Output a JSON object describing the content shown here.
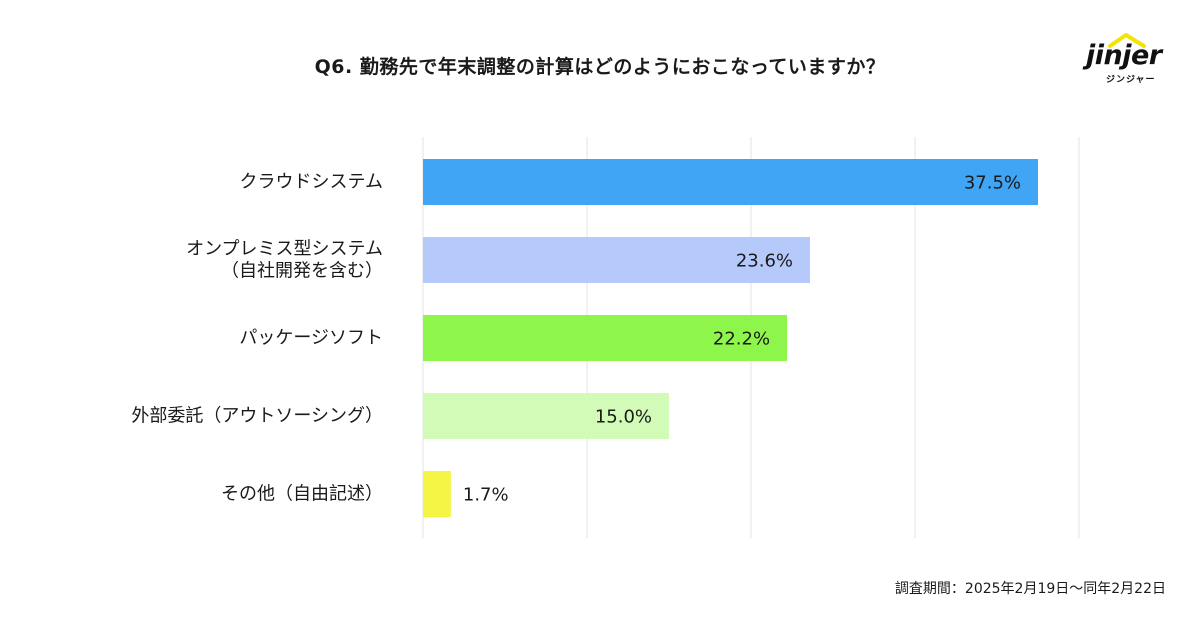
{
  "title": "Q6. 勤務先で年末調整の計算はどのようにおこなっていますか？",
  "logo": {
    "word": "jinjer",
    "sub": "ジンジャー",
    "icon": "house-roof-icon",
    "accent": "#f2e600"
  },
  "footnote": "調査期間：2025年2月19日〜同年2月22日",
  "chart_data": {
    "type": "bar",
    "orientation": "horizontal",
    "title": "Q6. 勤務先で年末調整の計算はどのようにおこなっていますか？",
    "categories": [
      [
        "クラウドシステム"
      ],
      [
        "オンプレミス型システム",
        "（自社開発を含む）"
      ],
      [
        "パッケージソフト"
      ],
      [
        "外部委託（アウトソーシング）"
      ],
      [
        "その他（自由記述）"
      ]
    ],
    "values": [
      37.5,
      23.6,
      22.2,
      15.0,
      1.7
    ],
    "value_labels": [
      "37.5%",
      "23.6%",
      "22.2%",
      "15.0%",
      "1.7%"
    ],
    "colors": [
      "#41a5f5",
      "#b5c9fb",
      "#8ef54a",
      "#d1fbb6",
      "#f5f545"
    ],
    "xlim": [
      0,
      40
    ],
    "grid": true,
    "legend": "none"
  }
}
